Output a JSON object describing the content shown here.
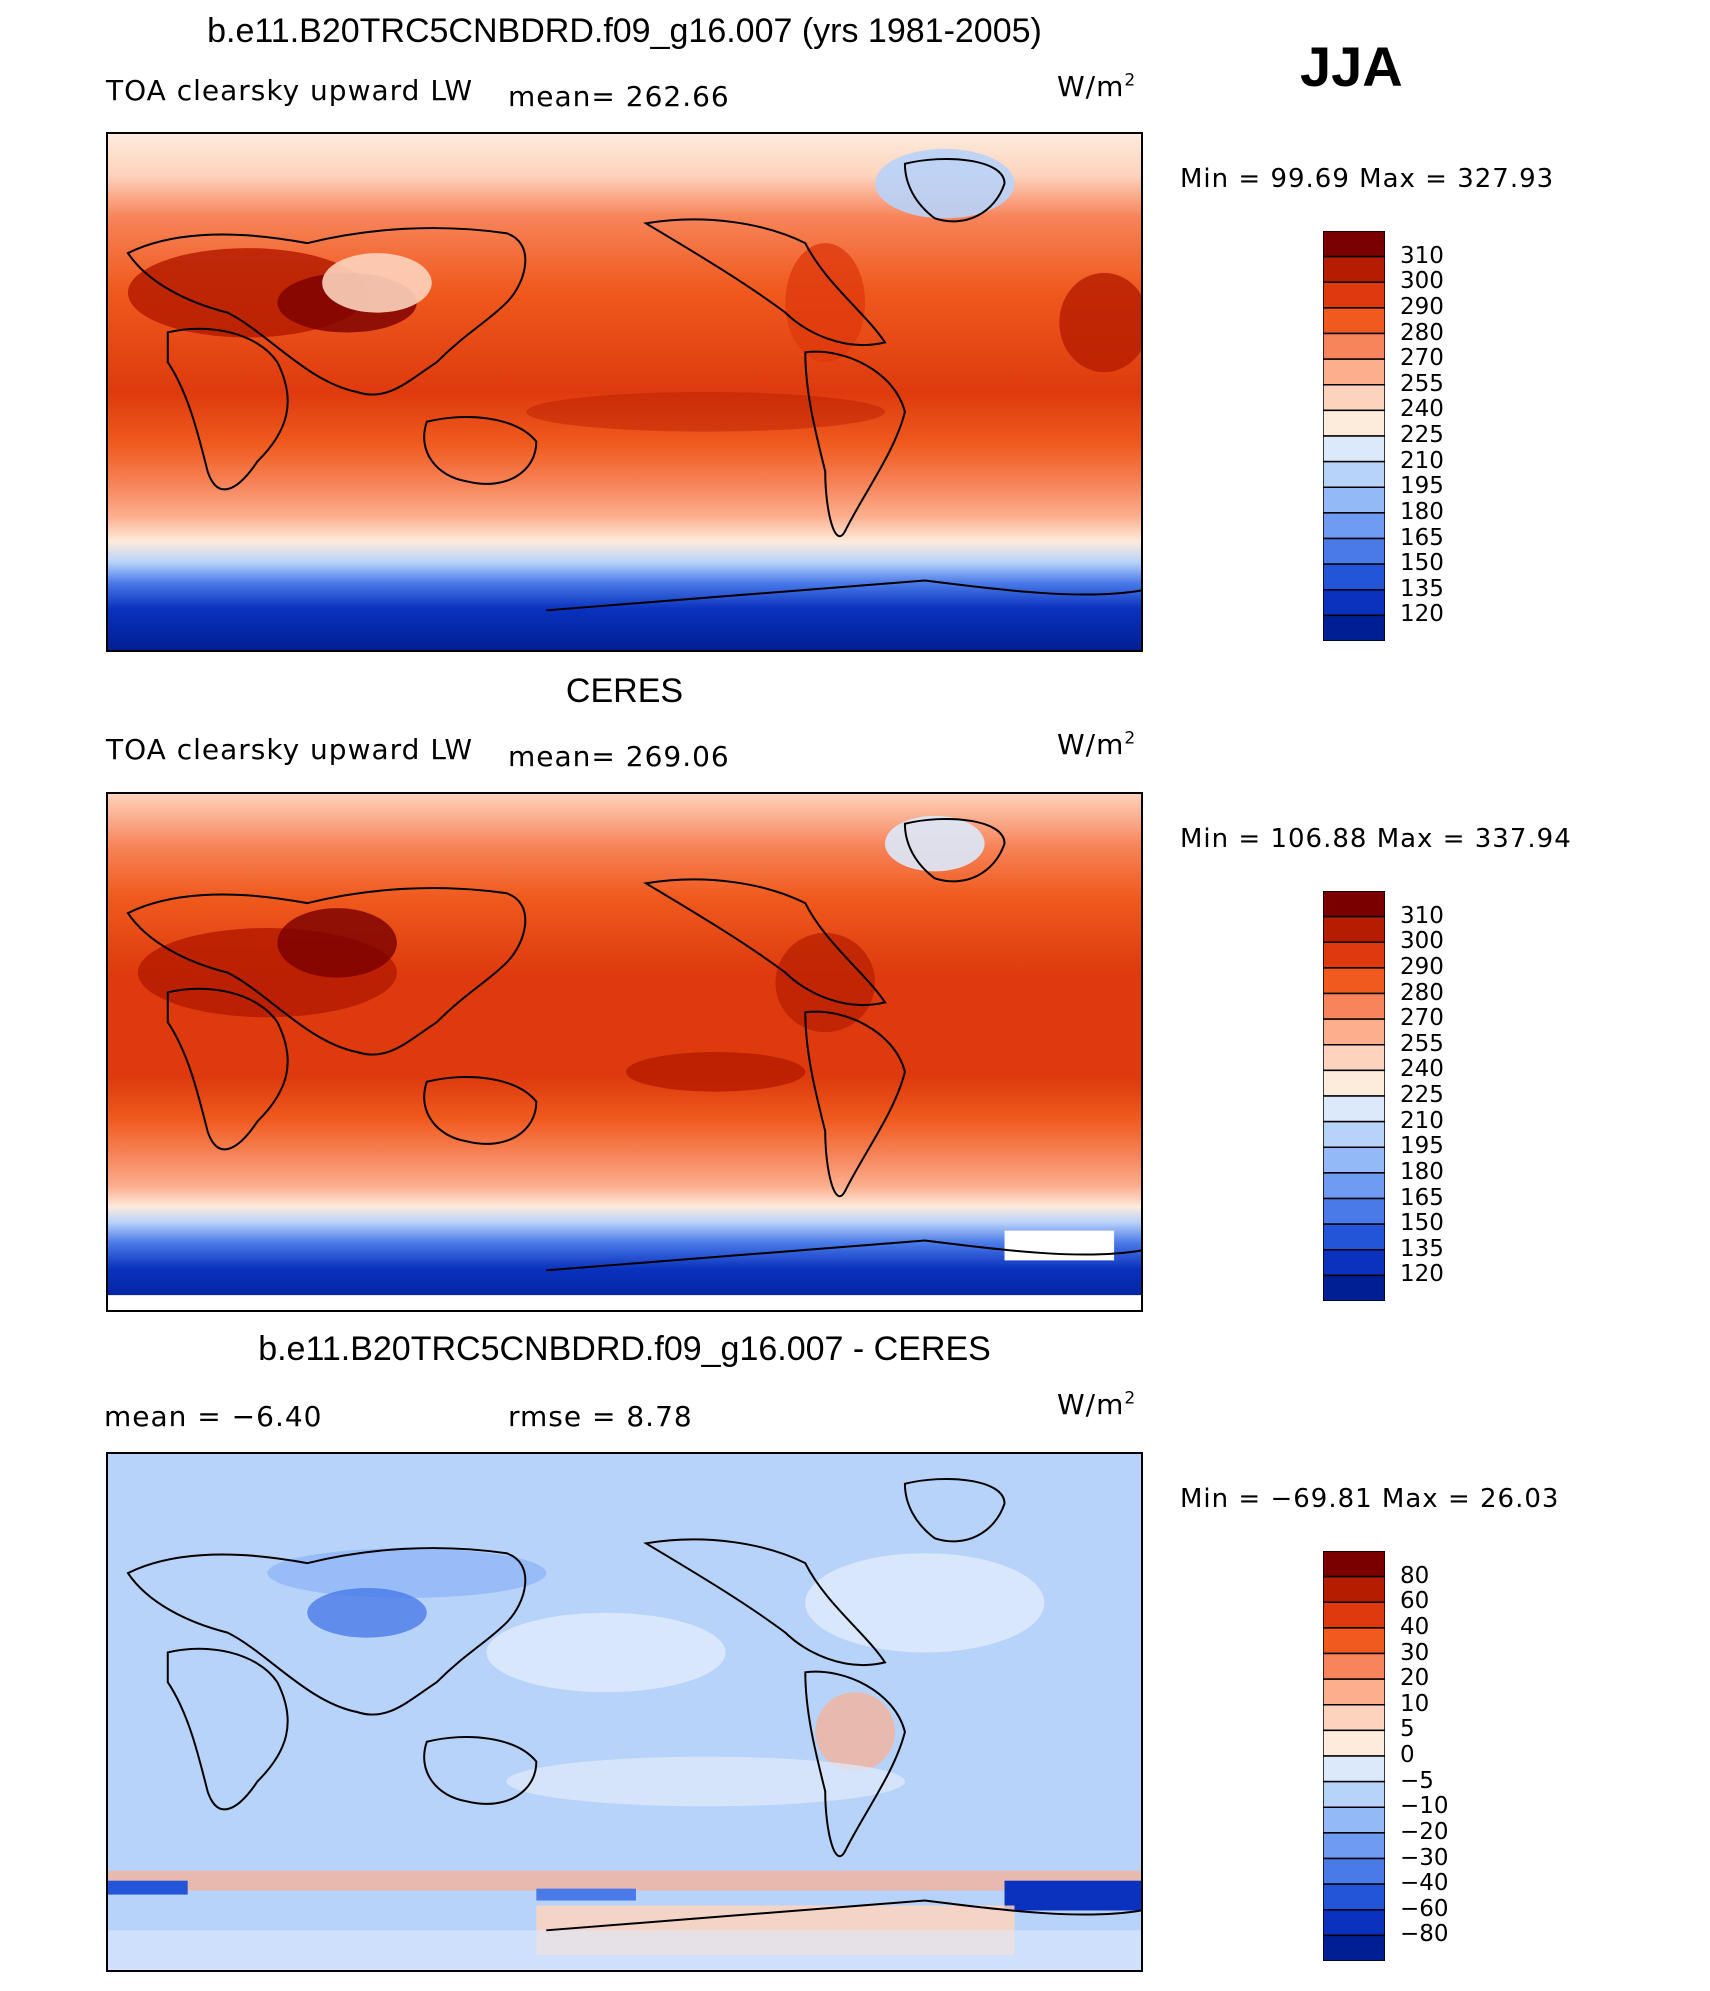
{
  "season": "JJA",
  "panels": [
    {
      "id": "model",
      "title": "b.e11.B20TRC5CNBDRD.f09_g16.007 (yrs 1981-2005)",
      "left_label": "TOA clearsky upward LW",
      "stat_label": "mean=  262.66",
      "units": "W/m",
      "units_sup": "2",
      "minmax": "Min =   99.69  Max  =  327.93",
      "colors": [
        "#ff0000"
      ]
    },
    {
      "id": "ceres",
      "title": "CERES",
      "left_label": "TOA clearsky upward LW",
      "stat_label": "mean=  269.06",
      "units": "W/m",
      "units_sup": "2",
      "minmax": "Min  =  106.88  Max  =  337.94"
    },
    {
      "id": "diff",
      "title": "b.e11.B20TRC5CNBDRD.f09_g16.007 - CERES",
      "left_label": "mean  =    −6.40",
      "stat_label": "rmse  =     8.78",
      "units": "W/m",
      "units_sup": "2",
      "minmax": "Min  =  −69.81  Max  =    26.03"
    }
  ],
  "chart_data": [
    {
      "type": "heatmap",
      "title": "b.e11.B20TRC5CNBDRD.f09_g16.007 (yrs 1981-2005)",
      "variable": "TOA clearsky upward LW",
      "units": "W/m2",
      "mean": 262.66,
      "min": 99.69,
      "max": 327.93,
      "colorbar_levels": [
        "310",
        "300",
        "290",
        "280",
        "270",
        "255",
        "240",
        "225",
        "210",
        "195",
        "180",
        "165",
        "150",
        "135",
        "120"
      ],
      "colorbar_colors": [
        "#7a0000",
        "#b51c00",
        "#de3a0e",
        "#f05a1e",
        "#f7845a",
        "#fcae8d",
        "#fdd3bd",
        "#fdebdc",
        "#dce9fb",
        "#b8d3fa",
        "#94b9f7",
        "#6f9bf2",
        "#4a7ae8",
        "#2355d8",
        "#0a32bf",
        "#001f94"
      ]
    },
    {
      "type": "heatmap",
      "title": "CERES",
      "variable": "TOA clearsky upward LW",
      "units": "W/m2",
      "mean": 269.06,
      "min": 106.88,
      "max": 337.94,
      "colorbar_levels": [
        "310",
        "300",
        "290",
        "280",
        "270",
        "255",
        "240",
        "225",
        "210",
        "195",
        "180",
        "165",
        "150",
        "135",
        "120"
      ],
      "colorbar_colors": [
        "#7a0000",
        "#b51c00",
        "#de3a0e",
        "#f05a1e",
        "#f7845a",
        "#fcae8d",
        "#fdd3bd",
        "#fdebdc",
        "#dce9fb",
        "#b8d3fa",
        "#94b9f7",
        "#6f9bf2",
        "#4a7ae8",
        "#2355d8",
        "#0a32bf",
        "#001f94"
      ]
    },
    {
      "type": "heatmap",
      "title": "b.e11.B20TRC5CNBDRD.f09_g16.007 - CERES",
      "units": "W/m2",
      "mean": -6.4,
      "rmse": 8.78,
      "min": -69.81,
      "max": 26.03,
      "colorbar_levels": [
        "80",
        "60",
        "40",
        "30",
        "20",
        "10",
        "5",
        "0",
        "−5",
        "−10",
        "−20",
        "−30",
        "−40",
        "−60",
        "−80"
      ],
      "colorbar_colors": [
        "#7a0000",
        "#b51c00",
        "#de3a0e",
        "#f05a1e",
        "#f7845a",
        "#fcae8d",
        "#fdd3bd",
        "#fdebdc",
        "#dce9fb",
        "#b8d3fa",
        "#94b9f7",
        "#6f9bf2",
        "#4a7ae8",
        "#2355d8",
        "#0a32bf",
        "#001f94"
      ]
    }
  ]
}
